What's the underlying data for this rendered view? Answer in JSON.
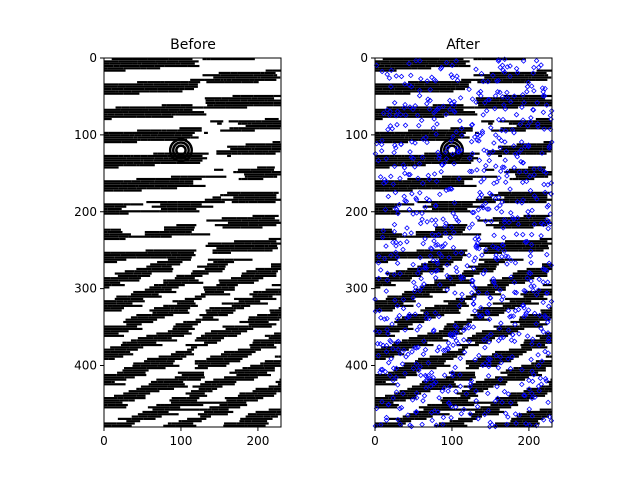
{
  "figure": {
    "background": "#ffffff"
  },
  "chart_data": [
    {
      "type": "heatmap",
      "title": "Before",
      "image": {
        "rows": 480,
        "cols": 230,
        "colors": [
          "#ffffff",
          "#000000"
        ],
        "description_of_content": "binary fingerprint image"
      },
      "xticks": [
        0,
        100,
        200
      ],
      "yticks": [
        0,
        100,
        200,
        300,
        400
      ],
      "xlim": [
        0,
        230
      ],
      "ylim": [
        480,
        0
      ],
      "markers": []
    },
    {
      "type": "scatter",
      "title": "After",
      "image": {
        "rows": 480,
        "cols": 230,
        "colors": [
          "#ffffff",
          "#000000"
        ]
      },
      "xticks": [
        0,
        100,
        200
      ],
      "yticks": [
        0,
        100,
        200,
        300,
        400
      ],
      "xlim": [
        0,
        230
      ],
      "ylim": [
        480,
        0
      ],
      "markers": {
        "shape": "diamond",
        "color": "#0000ff",
        "filled": false
      }
    }
  ]
}
